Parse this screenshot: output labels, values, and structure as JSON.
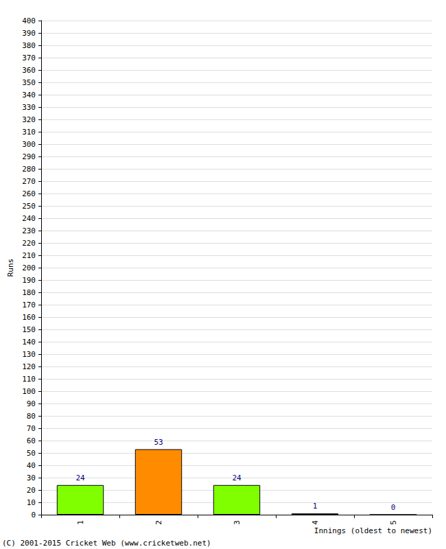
{
  "chart_data": {
    "type": "bar",
    "x_label": "Innings (oldest to newest)",
    "y_label": "Runs",
    "annotations": [
      "(C) 2001-2015 Cricket Web (www.cricketweb.net)"
    ],
    "categories": [
      "1",
      "2",
      "3",
      "4",
      "5"
    ],
    "values": [
      24,
      53,
      24,
      1,
      0
    ],
    "colors": [
      "#80ff00",
      "#ff8c00",
      "#80ff00",
      "#80ff00",
      "#80ff00"
    ],
    "data_labels": true,
    "ylim": [
      0,
      400
    ],
    "yticks": [
      0,
      10,
      20,
      30,
      40,
      50,
      60,
      70,
      80,
      90,
      100,
      110,
      120,
      130,
      140,
      150,
      160,
      170,
      180,
      190,
      200,
      210,
      220,
      230,
      240,
      250,
      260,
      270,
      280,
      290,
      300,
      310,
      320,
      330,
      340,
      350,
      360,
      370,
      380,
      390,
      400
    ],
    "grid": true
  }
}
